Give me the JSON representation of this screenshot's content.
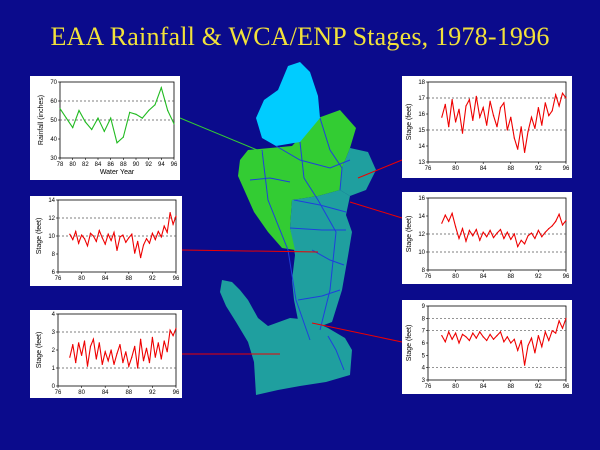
{
  "title": "EAA Rainfall & WCA/ENP Stages,  1978-1996",
  "colors": {
    "background": "#0b0b8c",
    "title": "#f2e23a",
    "eaa": "#33cc33",
    "wca": "#1f9f9f",
    "lake": "#00ccff",
    "canal": "#1f3fdd",
    "rain_line": "#22bb22",
    "stage_line": "#ee0000"
  },
  "chart_data": [
    {
      "id": "eaa-rainfall",
      "type": "line",
      "ylabel": "Rainfall (inches)",
      "xlabel": "Water Year",
      "xlim": [
        78,
        96
      ],
      "ylim": [
        30,
        70
      ],
      "xticks": [
        "78",
        "80",
        "82",
        "84",
        "86",
        "88",
        "90",
        "92",
        "94",
        "96"
      ],
      "yticks": [
        "30",
        "40",
        "50",
        "60",
        "70"
      ],
      "ref_lines": [
        60,
        50
      ],
      "x": [
        78,
        79,
        80,
        81,
        82,
        83,
        84,
        85,
        86,
        87,
        88,
        89,
        90,
        91,
        92,
        93,
        94,
        95,
        96
      ],
      "values": [
        56,
        51,
        46,
        55,
        49,
        45,
        51,
        44,
        51,
        38,
        41,
        54,
        53,
        51,
        55,
        58,
        67,
        55,
        48
      ]
    },
    {
      "id": "wca-northeast",
      "type": "line",
      "ylabel": "Stage (feet)",
      "xlim": [
        76,
        96
      ],
      "ylim": [
        13,
        18
      ],
      "xticks": [
        "76",
        "80",
        "84",
        "88",
        "92",
        "96"
      ],
      "yticks": [
        "13",
        "14",
        "15",
        "16",
        "17",
        "18"
      ],
      "ref_lines": [
        17,
        15
      ],
      "x": [
        78,
        78.5,
        79,
        79.5,
        80,
        80.5,
        81,
        81.5,
        82,
        82.5,
        83,
        83.5,
        84,
        84.5,
        85,
        85.5,
        86,
        86.5,
        87,
        87.5,
        88,
        88.5,
        89,
        89.5,
        90,
        90.5,
        91,
        91.5,
        92,
        92.5,
        93,
        93.5,
        94,
        94.5,
        95,
        95.5,
        96
      ],
      "values": [
        15.8,
        16.6,
        15.2,
        16.9,
        15.5,
        16.3,
        14.8,
        16.5,
        16.9,
        15.6,
        17.1,
        15.8,
        16.4,
        15.3,
        16.8,
        15.9,
        15.2,
        16.4,
        16.7,
        15.0,
        15.8,
        14.5,
        13.8,
        15.2,
        13.6,
        14.9,
        15.8,
        15.1,
        16.4,
        15.3,
        16.7,
        15.9,
        16.2,
        17.2,
        16.5,
        17.3,
        17.0
      ]
    },
    {
      "id": "wca-west",
      "type": "line",
      "ylabel": "Stage (feet)",
      "xlim": [
        76,
        96
      ],
      "ylim": [
        6,
        14
      ],
      "xticks": [
        "76",
        "80",
        "84",
        "88",
        "92",
        "96"
      ],
      "yticks": [
        "6",
        "8",
        "10",
        "12",
        "14"
      ],
      "ref_lines": [
        12,
        10
      ],
      "x": [
        78,
        78.5,
        79,
        79.5,
        80,
        80.5,
        81,
        81.5,
        82,
        82.5,
        83,
        83.5,
        84,
        84.5,
        85,
        85.5,
        86,
        86.5,
        87,
        87.5,
        88,
        88.5,
        89,
        89.5,
        90,
        90.5,
        91,
        91.5,
        92,
        92.5,
        93,
        93.5,
        94,
        94.5,
        95,
        95.5,
        96
      ],
      "values": [
        10.2,
        9.6,
        10.5,
        9.2,
        10.1,
        9.7,
        8.9,
        10.3,
        10.0,
        9.4,
        10.6,
        9.8,
        9.1,
        10.2,
        9.5,
        10.4,
        8.4,
        9.9,
        10.1,
        9.3,
        9.8,
        10.2,
        8.1,
        9.4,
        7.6,
        9.0,
        9.7,
        9.2,
        10.3,
        9.6,
        10.5,
        9.9,
        11.1,
        10.4,
        12.6,
        11.3,
        12.2
      ]
    },
    {
      "id": "wca-central",
      "type": "line",
      "ylabel": "Stage (feet)",
      "xlim": [
        76,
        96
      ],
      "ylim": [
        8,
        16
      ],
      "xticks": [
        "76",
        "80",
        "84",
        "88",
        "92",
        "96"
      ],
      "yticks": [
        "8",
        "10",
        "12",
        "14",
        "16"
      ],
      "ref_lines": [
        12,
        10
      ],
      "x": [
        78,
        78.5,
        79,
        79.5,
        80,
        80.5,
        81,
        81.5,
        82,
        82.5,
        83,
        83.5,
        84,
        84.5,
        85,
        85.5,
        86,
        86.5,
        87,
        87.5,
        88,
        88.5,
        89,
        89.5,
        90,
        90.5,
        91,
        91.5,
        92,
        92.5,
        93,
        93.5,
        94,
        94.5,
        95,
        95.5,
        96
      ],
      "values": [
        13.2,
        14.1,
        13.4,
        14.3,
        12.8,
        11.5,
        12.6,
        11.2,
        12.4,
        11.8,
        12.5,
        11.3,
        12.2,
        11.7,
        12.4,
        11.6,
        12.1,
        12.5,
        11.5,
        12.2,
        11.4,
        12.0,
        10.6,
        11.3,
        10.9,
        11.8,
        12.1,
        11.5,
        12.4,
        11.7,
        12.2,
        12.6,
        12.9,
        13.4,
        14.2,
        13.0,
        13.5
      ]
    },
    {
      "id": "enp-south",
      "type": "line",
      "ylabel": "Stage (feet)",
      "xlim": [
        76,
        96
      ],
      "ylim": [
        0,
        4
      ],
      "xticks": [
        "76",
        "80",
        "84",
        "88",
        "92",
        "96"
      ],
      "yticks": [
        "0",
        "1",
        "2",
        "3",
        "4"
      ],
      "ref_lines": [
        3,
        1
      ],
      "x": [
        78,
        78.5,
        79,
        79.5,
        80,
        80.5,
        81,
        81.5,
        82,
        82.5,
        83,
        83.5,
        84,
        84.5,
        85,
        85.5,
        86,
        86.5,
        87,
        87.5,
        88,
        88.5,
        89,
        89.5,
        90,
        90.5,
        91,
        91.5,
        92,
        92.5,
        93,
        93.5,
        94,
        94.5,
        95,
        95.5,
        96
      ],
      "values": [
        1.6,
        2.3,
        1.3,
        2.4,
        1.7,
        2.5,
        1.1,
        2.2,
        2.6,
        1.5,
        2.4,
        1.2,
        1.9,
        1.4,
        2.0,
        1.2,
        1.8,
        2.3,
        1.3,
        1.9,
        1.1,
        1.6,
        2.2,
        1.0,
        2.6,
        1.4,
        2.1,
        1.3,
        2.7,
        1.6,
        2.4,
        1.5,
        2.5,
        1.9,
        3.1,
        2.8,
        3.2
      ]
    },
    {
      "id": "enp-southeast",
      "type": "line",
      "ylabel": "Stage (feet)",
      "xlim": [
        76,
        96
      ],
      "ylim": [
        3,
        9
      ],
      "xticks": [
        "76",
        "80",
        "84",
        "88",
        "92",
        "96"
      ],
      "yticks": [
        "3",
        "4",
        "5",
        "6",
        "7",
        "8",
        "9"
      ],
      "ref_lines": [
        8,
        7,
        4
      ],
      "x": [
        78,
        78.5,
        79,
        79.5,
        80,
        80.5,
        81,
        81.5,
        82,
        82.5,
        83,
        83.5,
        84,
        84.5,
        85,
        85.5,
        86,
        86.5,
        87,
        87.5,
        88,
        88.5,
        89,
        89.5,
        90,
        90.5,
        91,
        91.5,
        92,
        92.5,
        93,
        93.5,
        94,
        94.5,
        95,
        95.5,
        96
      ],
      "values": [
        6.6,
        6.1,
        6.9,
        6.3,
        6.8,
        6.0,
        6.7,
        6.5,
        6.2,
        6.8,
        6.4,
        6.9,
        6.5,
        6.2,
        6.7,
        6.3,
        6.6,
        6.9,
        6.1,
        6.5,
        6.0,
        6.3,
        5.4,
        6.2,
        4.2,
        5.8,
        6.4,
        5.2,
        6.6,
        5.7,
        6.9,
        6.2,
        7.0,
        6.8,
        7.8,
        7.2,
        8.0
      ]
    }
  ],
  "map": {
    "regions": [
      {
        "name": "lake-okeechobee",
        "color_key": "lake"
      },
      {
        "name": "everglades-agricultural-area",
        "color_key": "eaa"
      },
      {
        "name": "water-conservation-areas",
        "color_key": "wca"
      },
      {
        "name": "everglades-national-park",
        "color_key": "wca"
      }
    ]
  }
}
